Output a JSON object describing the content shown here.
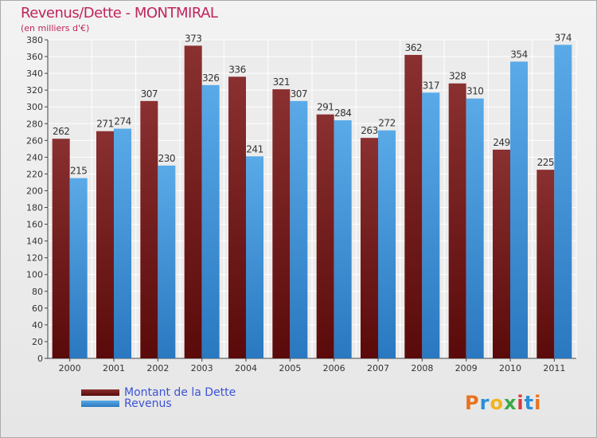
{
  "header": {
    "title": "Revenus/Dette - MONTMIRAL",
    "subtitle": "(en milliers d'€)"
  },
  "colors": {
    "title": "#c0245c",
    "debt_dark": "#5a0a0a",
    "debt_light": "#8a3030",
    "revenue_dark": "#2a78c0",
    "revenue_light": "#5aaae8",
    "legend_text": "#3b52d6"
  },
  "logo": {
    "text": "Proxiti"
  },
  "chart_data": {
    "type": "bar",
    "categories": [
      "2000",
      "2001",
      "2002",
      "2003",
      "2004",
      "2005",
      "2006",
      "2007",
      "2008",
      "2009",
      "2010",
      "2011"
    ],
    "series": [
      {
        "name": "Montant de la Dette",
        "values": [
          262,
          271,
          307,
          373,
          336,
          321,
          291,
          263,
          362,
          328,
          249,
          225
        ]
      },
      {
        "name": "Revenus",
        "values": [
          215,
          274,
          230,
          326,
          241,
          307,
          284,
          272,
          317,
          310,
          354,
          374
        ]
      }
    ],
    "ylim": [
      0,
      380
    ],
    "yticks": [
      0,
      20,
      40,
      60,
      80,
      100,
      120,
      140,
      160,
      180,
      200,
      220,
      240,
      260,
      280,
      300,
      320,
      340,
      360,
      380
    ],
    "grid": true,
    "legend": "bottom-left"
  }
}
